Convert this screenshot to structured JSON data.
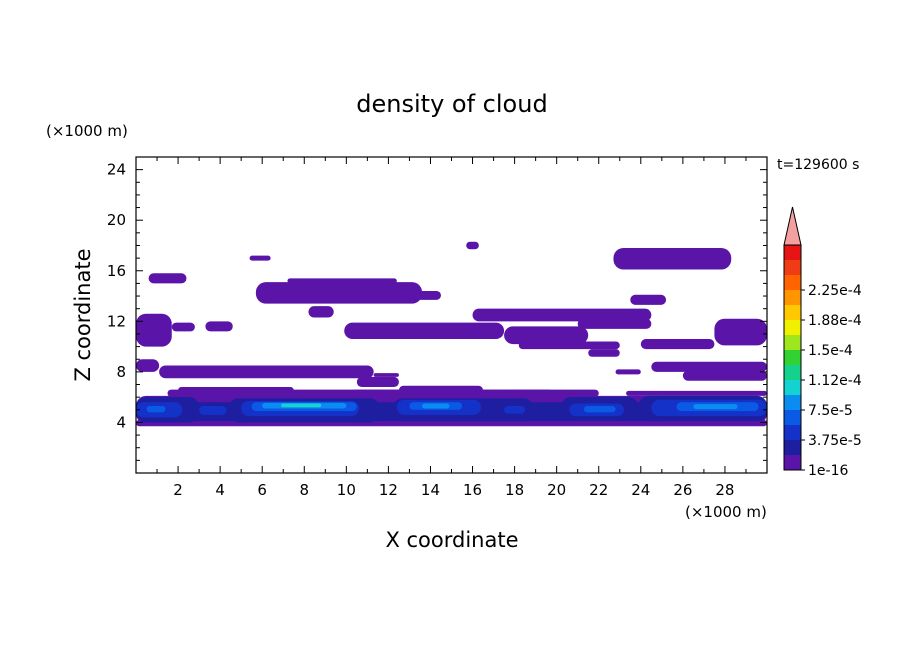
{
  "chart_data": {
    "type": "heatmap",
    "title": "density of cloud",
    "xlabel": "X coordinate",
    "ylabel": "Z coordinate",
    "x_unit": "(×1000 m)",
    "y_unit": "(×1000 m)",
    "time_label": "t=129600 s",
    "xlim": [
      0,
      30
    ],
    "ylim": [
      0,
      25
    ],
    "x_ticks": [
      2,
      4,
      6,
      8,
      10,
      12,
      14,
      16,
      18,
      20,
      22,
      24,
      26,
      28
    ],
    "y_ticks": [
      4,
      8,
      12,
      16,
      20,
      24
    ],
    "colorbar": {
      "labels": [
        "1e-16",
        "3.75e-5",
        "7.5e-5",
        "1.12e-4",
        "1.5e-4",
        "1.88e-4",
        "2.25e-4"
      ],
      "colors": [
        "#5a14a8",
        "#1e1ea0",
        "#1432c8",
        "#0a5ae6",
        "#0a8cf0",
        "#14d2d2",
        "#14d28c",
        "#32d232",
        "#a0e61e",
        "#f0f000",
        "#ffc800",
        "#ff9600",
        "#ff6400",
        "#f03c14",
        "#e61414"
      ],
      "extend_color": "#f4a0a0"
    },
    "levels": [
      {
        "name": "1e-16",
        "color": "#5a14a8",
        "regions": [
          {
            "x": [
              0,
              30
            ],
            "y": [
              3.9,
              6.1
            ]
          },
          {
            "x": [
              0,
              30
            ],
            "y": [
              3.7,
              4.2
            ]
          },
          {
            "x": [
              1.5,
              22
            ],
            "y": [
              6.0,
              6.6
            ]
          },
          {
            "x": [
              2.0,
              7.5
            ],
            "y": [
              6.3,
              6.8
            ]
          },
          {
            "x": [
              10.2,
              19.8
            ],
            "y": [
              6.1,
              6.6
            ]
          },
          {
            "x": [
              10.5,
              12.5
            ],
            "y": [
              6.8,
              7.6
            ]
          },
          {
            "x": [
              12.5,
              16.5
            ],
            "y": [
              6.2,
              6.9
            ]
          },
          {
            "x": [
              0,
              1.1
            ],
            "y": [
              8.0,
              9.0
            ]
          },
          {
            "x": [
              1.1,
              11.3
            ],
            "y": [
              7.5,
              8.5
            ]
          },
          {
            "x": [
              11.3,
              12.5
            ],
            "y": [
              7.6,
              7.9
            ]
          },
          {
            "x": [
              23.3,
              30
            ],
            "y": [
              6.1,
              6.5
            ]
          },
          {
            "x": [
              24.5,
              30
            ],
            "y": [
              8.0,
              8.8
            ]
          },
          {
            "x": [
              26.0,
              30
            ],
            "y": [
              7.3,
              8.1
            ]
          },
          {
            "x": [
              22.8,
              24.0
            ],
            "y": [
              7.8,
              8.2
            ]
          },
          {
            "x": [
              0,
              1.7
            ],
            "y": [
              10.0,
              12.6
            ]
          },
          {
            "x": [
              1.7,
              2.8
            ],
            "y": [
              11.2,
              11.9
            ]
          },
          {
            "x": [
              3.3,
              4.6
            ],
            "y": [
              11.2,
              12.0
            ]
          },
          {
            "x": [
              9.9,
              17.5
            ],
            "y": [
              10.6,
              11.9
            ]
          },
          {
            "x": [
              17.5,
              21.5
            ],
            "y": [
              10.2,
              11.6
            ]
          },
          {
            "x": [
              16.0,
              24.5
            ],
            "y": [
              12.0,
              13.0
            ]
          },
          {
            "x": [
              21.0,
              24.5
            ],
            "y": [
              11.4,
              12.2
            ]
          },
          {
            "x": [
              18.2,
              23.0
            ],
            "y": [
              9.8,
              10.4
            ]
          },
          {
            "x": [
              21.5,
              23.0
            ],
            "y": [
              9.2,
              9.8
            ]
          },
          {
            "x": [
              24.0,
              27.5
            ],
            "y": [
              9.8,
              10.6
            ]
          },
          {
            "x": [
              27.5,
              30
            ],
            "y": [
              10.1,
              12.2
            ]
          },
          {
            "x": [
              23.5,
              25.2
            ],
            "y": [
              13.3,
              14.1
            ]
          },
          {
            "x": [
              5.7,
              13.6
            ],
            "y": [
              13.4,
              15.1
            ]
          },
          {
            "x": [
              7.2,
              12.4
            ],
            "y": [
              15.0,
              15.4
            ]
          },
          {
            "x": [
              8.2,
              9.4
            ],
            "y": [
              12.3,
              13.2
            ]
          },
          {
            "x": [
              12.2,
              14.5
            ],
            "y": [
              13.7,
              14.4
            ]
          },
          {
            "x": [
              0.6,
              2.4
            ],
            "y": [
              15.0,
              15.8
            ]
          },
          {
            "x": [
              22.7,
              28.3
            ],
            "y": [
              16.1,
              17.8
            ]
          },
          {
            "x": [
              5.4,
              6.4
            ],
            "y": [
              16.8,
              17.2
            ]
          },
          {
            "x": [
              15.7,
              16.3
            ],
            "y": [
              17.7,
              18.3
            ]
          }
        ]
      },
      {
        "name": "3.75e-5",
        "color": "#1e1ea0",
        "regions": [
          {
            "x": [
              0,
              30
            ],
            "y": [
              4.1,
              5.6
            ]
          },
          {
            "x": [
              0,
              3.0
            ],
            "y": [
              4.0,
              6.0
            ]
          },
          {
            "x": [
              4.4,
              11.6
            ],
            "y": [
              4.0,
              5.9
            ]
          },
          {
            "x": [
              12.2,
              18.9
            ],
            "y": [
              4.1,
              5.9
            ]
          },
          {
            "x": [
              20.2,
              23.9
            ],
            "y": [
              4.2,
              6.0
            ]
          },
          {
            "x": [
              23.9,
              30
            ],
            "y": [
              4.1,
              6.1
            ]
          }
        ]
      },
      {
        "name": "7.5e-5",
        "color": "#1432c8",
        "regions": [
          {
            "x": [
              0,
              2.2
            ],
            "y": [
              4.4,
              5.6
            ]
          },
          {
            "x": [
              3.0,
              4.3
            ],
            "y": [
              4.6,
              5.3
            ]
          },
          {
            "x": [
              5.0,
              10.6
            ],
            "y": [
              4.5,
              5.7
            ]
          },
          {
            "x": [
              12.4,
              16.4
            ],
            "y": [
              4.6,
              5.8
            ]
          },
          {
            "x": [
              17.5,
              18.5
            ],
            "y": [
              4.7,
              5.3
            ]
          },
          {
            "x": [
              20.6,
              23.2
            ],
            "y": [
              4.5,
              5.5
            ]
          },
          {
            "x": [
              24.5,
              30
            ],
            "y": [
              4.5,
              5.8
            ]
          }
        ]
      },
      {
        "name": "1.12e-4",
        "color": "#0a5ae6",
        "regions": [
          {
            "x": [
              0.5,
              1.4
            ],
            "y": [
              4.8,
              5.3
            ]
          },
          {
            "x": [
              5.5,
              10.5
            ],
            "y": [
              4.9,
              5.6
            ]
          },
          {
            "x": [
              13.0,
              15.5
            ],
            "y": [
              5.0,
              5.6
            ]
          },
          {
            "x": [
              21.3,
              22.8
            ],
            "y": [
              4.8,
              5.3
            ]
          },
          {
            "x": [
              25.7,
              29.6
            ],
            "y": [
              4.9,
              5.6
            ]
          }
        ]
      },
      {
        "name": "1.5e-4",
        "color": "#0a8cf0",
        "regions": [
          {
            "x": [
              6.0,
              10.0
            ],
            "y": [
              5.1,
              5.55
            ]
          },
          {
            "x": [
              13.6,
              14.9
            ],
            "y": [
              5.1,
              5.5
            ]
          },
          {
            "x": [
              26.5,
              28.6
            ],
            "y": [
              5.05,
              5.45
            ]
          }
        ]
      },
      {
        "name": "1.88e-4",
        "color": "#14d2d2",
        "regions": [
          {
            "x": [
              6.9,
              8.8
            ],
            "y": [
              5.2,
              5.5
            ]
          }
        ]
      }
    ]
  }
}
